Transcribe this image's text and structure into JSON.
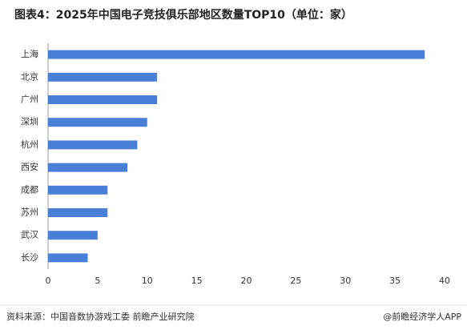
{
  "chart_data": {
    "type": "hbar",
    "title": "图表4：2025年中国电子竞技俱乐部地区数量TOP10（单位：家）",
    "categories": [
      "上海",
      "北京",
      "广州",
      "深圳",
      "杭州",
      "西安",
      "成都",
      "苏州",
      "武汉",
      "长沙"
    ],
    "values": [
      38,
      11,
      11,
      10,
      9,
      8,
      6,
      6,
      5,
      4
    ],
    "color": "#4a7fd8",
    "xlim": [
      0,
      40
    ],
    "xticks": [
      0,
      5,
      10,
      15,
      20,
      25,
      30,
      35,
      40
    ],
    "grid": false
  },
  "footer": {
    "source": "资料来源：中国音数协游戏工委  前瞻产业研究院",
    "credit": "@前瞻经济学人APP"
  }
}
